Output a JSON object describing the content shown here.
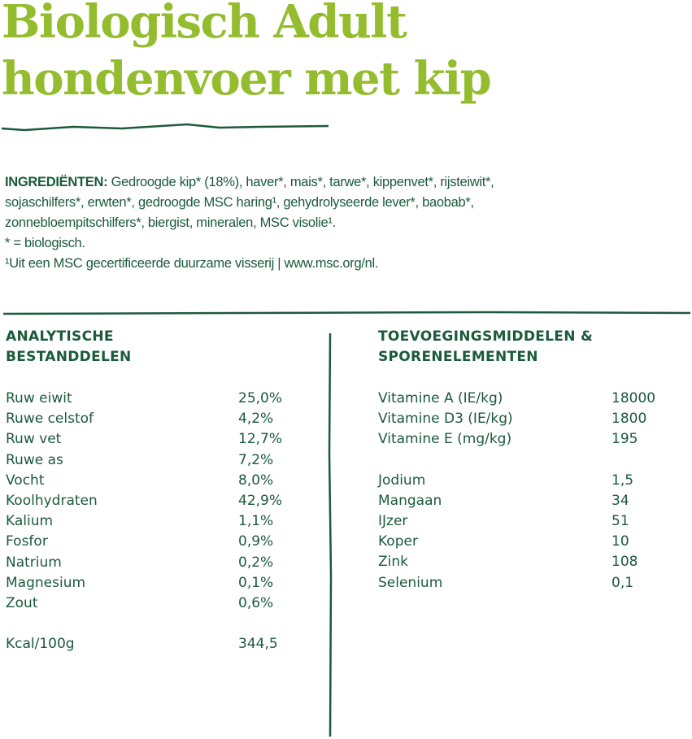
{
  "title": {
    "line1": "Biologisch Adult",
    "line2": "hondenvoer met kip"
  },
  "ingredients": {
    "label": "INGREDIËNTEN:",
    "line1": " Gedroogde kip* (18%), haver*, mais*, tarwe*, kippenvet*, rijsteiwit*,",
    "line2": "sojaschilfers*, erwten*, gedroogde MSC haring¹, gehydrolyseerde lever*, baobab*,",
    "line3": "zonnebloempitschilfers*, biergist, mineralen, MSC visolie¹.",
    "note1": "* = biologisch.",
    "note2": "¹Uit een MSC gecertificeerde duurzame visserij | www.msc.org/nl."
  },
  "analytical": {
    "heading_line1": "ANALYTISCHE",
    "heading_line2": "BESTANDDELEN",
    "rows": [
      {
        "label": "Ruw eiwit",
        "value": "25,0%"
      },
      {
        "label": "Ruwe celstof",
        "value": "4,2%"
      },
      {
        "label": "Ruw vet",
        "value": "12,7%"
      },
      {
        "label": "Ruwe as",
        "value": "7,2%"
      },
      {
        "label": "Vocht",
        "value": "8,0%"
      },
      {
        "label": "Koolhydraten",
        "value": "42,9%"
      },
      {
        "label": "Kalium",
        "value": "1,1%"
      },
      {
        "label": "Fosfor",
        "value": "0,9%"
      },
      {
        "label": "Natrium",
        "value": "0,2%"
      },
      {
        "label": "Magnesium",
        "value": "0,1%"
      },
      {
        "label": "Zout",
        "value": "0,6%"
      },
      {
        "label": "Kcal/100g",
        "value": "344,5",
        "gap": true
      }
    ]
  },
  "additives": {
    "heading_line1": "TOEVOEGINGSMIDDELEN &",
    "heading_line2": "SPORENELEMENTEN",
    "rows": [
      {
        "label": "Vitamine A (IE/kg)",
        "value": "18000"
      },
      {
        "label": "Vitamine D3 (IE/kg)",
        "value": "1800"
      },
      {
        "label": "Vitamine E (mg/kg)",
        "value": "195"
      },
      {
        "label": "Jodium",
        "value": "1,5",
        "gap": true
      },
      {
        "label": "Mangaan",
        "value": "34"
      },
      {
        "label": "IJzer",
        "value": "51"
      },
      {
        "label": "Koper",
        "value": "10"
      },
      {
        "label": "Zink",
        "value": "108"
      },
      {
        "label": "Selenium",
        "value": "0,1"
      }
    ]
  },
  "colors": {
    "title_green": "#93bd2e",
    "dark_green": "#1b5a3b"
  }
}
